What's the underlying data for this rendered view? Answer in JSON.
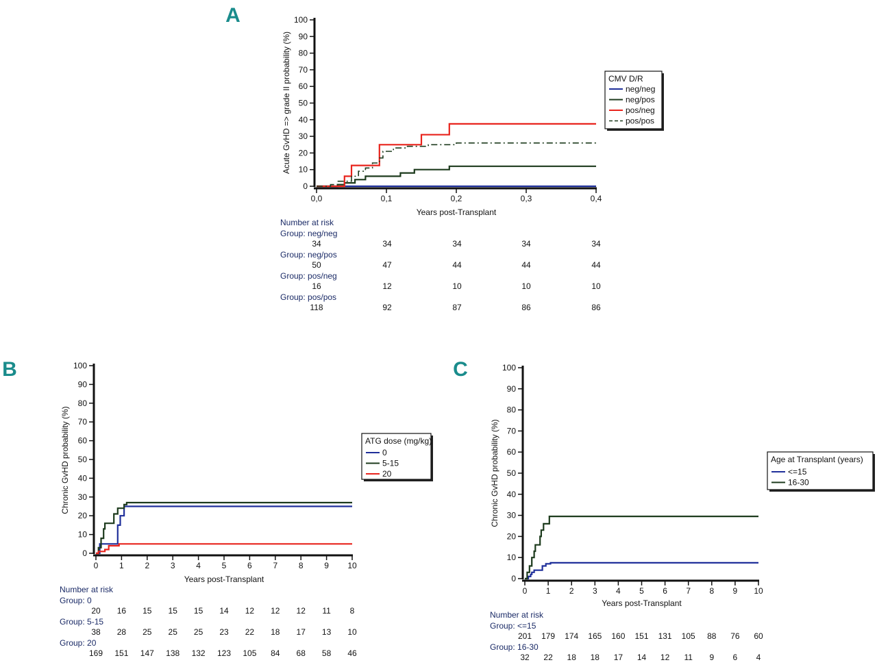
{
  "chart_data": [
    {
      "panel": "A",
      "type": "line",
      "ylabel": "Acute GvHD => grade II probability (%)",
      "xlabel": "Years post-Transplant",
      "xlim": [
        0,
        0.4
      ],
      "ylim": [
        0,
        100
      ],
      "x_ticks": [
        0,
        0.1,
        0.2,
        0.3,
        0.4
      ],
      "x_tick_labels": [
        "0,0",
        "0,1",
        "0,2",
        "0,3",
        "0,4"
      ],
      "y_ticks": [
        0,
        10,
        20,
        30,
        40,
        50,
        60,
        70,
        80,
        90,
        100
      ],
      "legend": {
        "title": "CMV D/R",
        "placement": "right"
      },
      "series": [
        {
          "name": "neg/neg",
          "color": "#1f2f9a",
          "dash": false,
          "points": [
            [
              0,
              0
            ],
            [
              0.4,
              0
            ]
          ]
        },
        {
          "name": "neg/pos",
          "color": "#1c3a1c",
          "dash": false,
          "points": [
            [
              0,
              0
            ],
            [
              0.03,
              0
            ],
            [
              0.03,
              1
            ],
            [
              0.04,
              1
            ],
            [
              0.04,
              2
            ],
            [
              0.055,
              2
            ],
            [
              0.055,
              4
            ],
            [
              0.07,
              4
            ],
            [
              0.07,
              6
            ],
            [
              0.1,
              6
            ],
            [
              0.1,
              6
            ],
            [
              0.12,
              6
            ],
            [
              0.12,
              8
            ],
            [
              0.14,
              8
            ],
            [
              0.14,
              10
            ],
            [
              0.19,
              10
            ],
            [
              0.19,
              12
            ],
            [
              0.4,
              12
            ]
          ]
        },
        {
          "name": "pos/neg",
          "color": "#e8231c",
          "dash": false,
          "points": [
            [
              0,
              0
            ],
            [
              0.04,
              0
            ],
            [
              0.04,
              6
            ],
            [
              0.05,
              6
            ],
            [
              0.05,
              12.5
            ],
            [
              0.09,
              12.5
            ],
            [
              0.09,
              25
            ],
            [
              0.15,
              25
            ],
            [
              0.15,
              31
            ],
            [
              0.19,
              31
            ],
            [
              0.19,
              37.5
            ],
            [
              0.4,
              37.5
            ]
          ]
        },
        {
          "name": "pos/pos",
          "color": "#1c3a1c",
          "dash": true,
          "points": [
            [
              0,
              0
            ],
            [
              0.02,
              0
            ],
            [
              0.02,
              1
            ],
            [
              0.03,
              1
            ],
            [
              0.03,
              3
            ],
            [
              0.05,
              3
            ],
            [
              0.05,
              6
            ],
            [
              0.06,
              6
            ],
            [
              0.06,
              9
            ],
            [
              0.07,
              9
            ],
            [
              0.07,
              11
            ],
            [
              0.08,
              11
            ],
            [
              0.08,
              14
            ],
            [
              0.09,
              14
            ],
            [
              0.09,
              17
            ],
            [
              0.095,
              17
            ],
            [
              0.095,
              21
            ],
            [
              0.11,
              21
            ],
            [
              0.11,
              23
            ],
            [
              0.13,
              23
            ],
            [
              0.13,
              24
            ],
            [
              0.16,
              24
            ],
            [
              0.16,
              25
            ],
            [
              0.2,
              25
            ],
            [
              0.2,
              26
            ],
            [
              0.4,
              26
            ]
          ]
        }
      ],
      "risk": {
        "title": "Number at risk",
        "groups": [
          {
            "label": "Group: neg/neg",
            "values": [
              "34",
              "34",
              "34",
              "34",
              "34"
            ]
          },
          {
            "label": "Group: neg/pos",
            "values": [
              "50",
              "47",
              "44",
              "44",
              "44"
            ]
          },
          {
            "label": "Group: pos/neg",
            "values": [
              "16",
              "12",
              "10",
              "10",
              "10"
            ]
          },
          {
            "label": "Group: pos/pos",
            "values": [
              "118",
              "92",
              "87",
              "86",
              "86"
            ]
          }
        ]
      }
    },
    {
      "panel": "B",
      "type": "line",
      "ylabel": "Chronic GvHD probability (%)",
      "xlabel": "Years post-Transplant",
      "xlim": [
        0,
        10
      ],
      "ylim": [
        0,
        100
      ],
      "x_ticks": [
        0,
        1,
        2,
        3,
        4,
        5,
        6,
        7,
        8,
        9,
        10
      ],
      "x_tick_labels": [
        "0",
        "1",
        "2",
        "3",
        "4",
        "5",
        "6",
        "7",
        "8",
        "9",
        "10"
      ],
      "y_ticks": [
        0,
        10,
        20,
        30,
        40,
        50,
        60,
        70,
        80,
        90,
        100
      ],
      "legend": {
        "title": "ATG dose (mg/kg)",
        "placement": "right"
      },
      "series": [
        {
          "name": "0",
          "color": "#1f2f9a",
          "dash": false,
          "points": [
            [
              0,
              0
            ],
            [
              0.15,
              0
            ],
            [
              0.15,
              5
            ],
            [
              0.85,
              5
            ],
            [
              0.85,
              15
            ],
            [
              0.95,
              15
            ],
            [
              0.95,
              20
            ],
            [
              1.1,
              20
            ],
            [
              1.1,
              25
            ],
            [
              10,
              25
            ]
          ]
        },
        {
          "name": "5-15",
          "color": "#1c3a1c",
          "dash": false,
          "points": [
            [
              0,
              0
            ],
            [
              0.1,
              0
            ],
            [
              0.1,
              3
            ],
            [
              0.2,
              3
            ],
            [
              0.2,
              8
            ],
            [
              0.3,
              8
            ],
            [
              0.3,
              13
            ],
            [
              0.35,
              13
            ],
            [
              0.35,
              16
            ],
            [
              0.7,
              16
            ],
            [
              0.7,
              21
            ],
            [
              0.85,
              21
            ],
            [
              0.85,
              24
            ],
            [
              1.1,
              24
            ],
            [
              1.1,
              26
            ],
            [
              1.2,
              26
            ],
            [
              1.2,
              27
            ],
            [
              10,
              27
            ]
          ]
        },
        {
          "name": "20",
          "color": "#e8231c",
          "dash": false,
          "points": [
            [
              0,
              0
            ],
            [
              0.1,
              0
            ],
            [
              0.1,
              1
            ],
            [
              0.35,
              1
            ],
            [
              0.35,
              2
            ],
            [
              0.5,
              2
            ],
            [
              0.5,
              4
            ],
            [
              0.9,
              4
            ],
            [
              0.9,
              5
            ],
            [
              10,
              5
            ]
          ]
        }
      ],
      "risk": {
        "title": "Number at risk",
        "groups": [
          {
            "label": "Group: 0",
            "values": [
              "20",
              "16",
              "15",
              "15",
              "15",
              "14",
              "12",
              "12",
              "12",
              "11",
              "8"
            ]
          },
          {
            "label": "Group: 5-15",
            "values": [
              "38",
              "28",
              "25",
              "25",
              "25",
              "23",
              "22",
              "18",
              "17",
              "13",
              "10"
            ]
          },
          {
            "label": "Group: 20",
            "values": [
              "169",
              "151",
              "147",
              "138",
              "132",
              "123",
              "105",
              "84",
              "68",
              "58",
              "46"
            ]
          }
        ]
      }
    },
    {
      "panel": "C",
      "type": "line",
      "ylabel": "Chronic GvHD probability (%)",
      "xlabel": "Years post-Transplant",
      "xlim": [
        0,
        10
      ],
      "ylim": [
        0,
        100
      ],
      "x_ticks": [
        0,
        1,
        2,
        3,
        4,
        5,
        6,
        7,
        8,
        9,
        10
      ],
      "x_tick_labels": [
        "0",
        "1",
        "2",
        "3",
        "4",
        "5",
        "6",
        "7",
        "8",
        "9",
        "10"
      ],
      "y_ticks": [
        0,
        10,
        20,
        30,
        40,
        50,
        60,
        70,
        80,
        90,
        100
      ],
      "legend": {
        "title": "Age at Transplant (years)",
        "placement": "right"
      },
      "series": [
        {
          "name": "<=15",
          "color": "#1f2f9a",
          "dash": false,
          "points": [
            [
              0,
              0
            ],
            [
              0.15,
              0
            ],
            [
              0.15,
              1
            ],
            [
              0.25,
              1
            ],
            [
              0.25,
              2
            ],
            [
              0.3,
              2
            ],
            [
              0.3,
              3
            ],
            [
              0.4,
              3
            ],
            [
              0.4,
              4
            ],
            [
              0.75,
              4
            ],
            [
              0.75,
              6
            ],
            [
              0.9,
              6
            ],
            [
              0.9,
              7
            ],
            [
              1.1,
              7
            ],
            [
              1.1,
              7.5
            ],
            [
              10,
              7.5
            ]
          ]
        },
        {
          "name": "16-30",
          "color": "#1c3a1c",
          "dash": false,
          "points": [
            [
              0,
              0
            ],
            [
              0.1,
              0
            ],
            [
              0.1,
              3
            ],
            [
              0.2,
              3
            ],
            [
              0.2,
              6
            ],
            [
              0.3,
              6
            ],
            [
              0.3,
              10
            ],
            [
              0.4,
              10
            ],
            [
              0.4,
              13
            ],
            [
              0.45,
              13
            ],
            [
              0.45,
              16
            ],
            [
              0.65,
              16
            ],
            [
              0.65,
              20
            ],
            [
              0.7,
              20
            ],
            [
              0.7,
              23
            ],
            [
              0.8,
              23
            ],
            [
              0.8,
              26
            ],
            [
              1.05,
              26
            ],
            [
              1.05,
              29.5
            ],
            [
              10,
              29.5
            ]
          ]
        }
      ],
      "risk": {
        "title": "Number at risk",
        "groups": [
          {
            "label": "Group: <=15",
            "values": [
              "201",
              "179",
              "174",
              "165",
              "160",
              "151",
              "131",
              "105",
              "88",
              "76",
              "60"
            ]
          },
          {
            "label": "Group: 16-30",
            "values": [
              "32",
              "22",
              "18",
              "18",
              "17",
              "14",
              "12",
              "11",
              "9",
              "6",
              "4"
            ]
          }
        ]
      }
    }
  ]
}
